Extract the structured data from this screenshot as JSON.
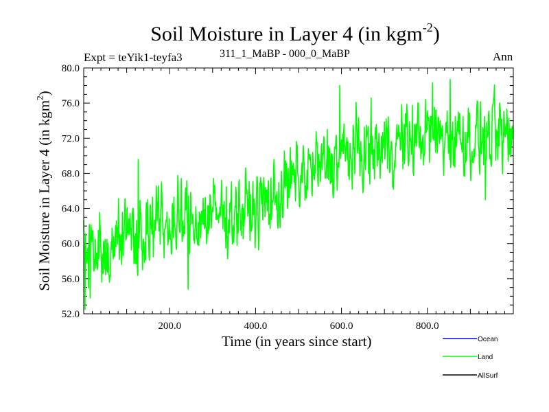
{
  "chart_data": {
    "type": "line",
    "title": "Soil Moisture in Layer 4 (in kgm",
    "title_sup": "-2",
    "title_end": ")",
    "subtitle_left": "Expt = teYik1-teyfa3",
    "subtitle_center": "311_1_MaBP - 000_0_MaBP",
    "subtitle_right": "Ann",
    "xlabel": "Time (in years since start)",
    "ylabel": "Soil Moisture in Layer 4 (in kgm",
    "ylabel_sup": "2",
    "ylabel_end": ")",
    "xlim": [
      0,
      1000
    ],
    "ylim": [
      52,
      80
    ],
    "x_ticks": [
      200,
      400,
      600,
      800
    ],
    "x_tick_labels": [
      "200.0",
      "400.0",
      "600.0",
      "800.0"
    ],
    "y_ticks": [
      52,
      56,
      60,
      64,
      68,
      72,
      76,
      80
    ],
    "y_tick_labels": [
      "52.0",
      "56.0",
      "60.0",
      "64.0",
      "68.0",
      "72.0",
      "76.0",
      "80.0"
    ],
    "legend": [
      {
        "name": "Ocean",
        "color": "#0000ff"
      },
      {
        "name": "Land",
        "color": "#00ff00"
      },
      {
        "name": "AllSurf",
        "color": "#000000"
      }
    ],
    "series": [
      {
        "name": "Land",
        "color": "#00ff00",
        "trend_x": [
          0,
          100,
          200,
          300,
          400,
          450,
          500,
          600,
          700,
          800,
          900,
          1000
        ],
        "trend_y": [
          59.5,
          61.0,
          62.2,
          63.2,
          64.0,
          65.5,
          67.5,
          70.0,
          71.0,
          72.5,
          72.0,
          72.0
        ],
        "amplitude": 3.2,
        "notable_points": [
          {
            "x": 3,
            "y": 52.5
          },
          {
            "x": 15,
            "y": 53.8
          },
          {
            "x": 127,
            "y": 69.6
          },
          {
            "x": 243,
            "y": 54.8
          },
          {
            "x": 596,
            "y": 78.0
          },
          {
            "x": 812,
            "y": 78.3
          },
          {
            "x": 853,
            "y": 78.7
          },
          {
            "x": 935,
            "y": 65.0
          }
        ]
      }
    ]
  }
}
